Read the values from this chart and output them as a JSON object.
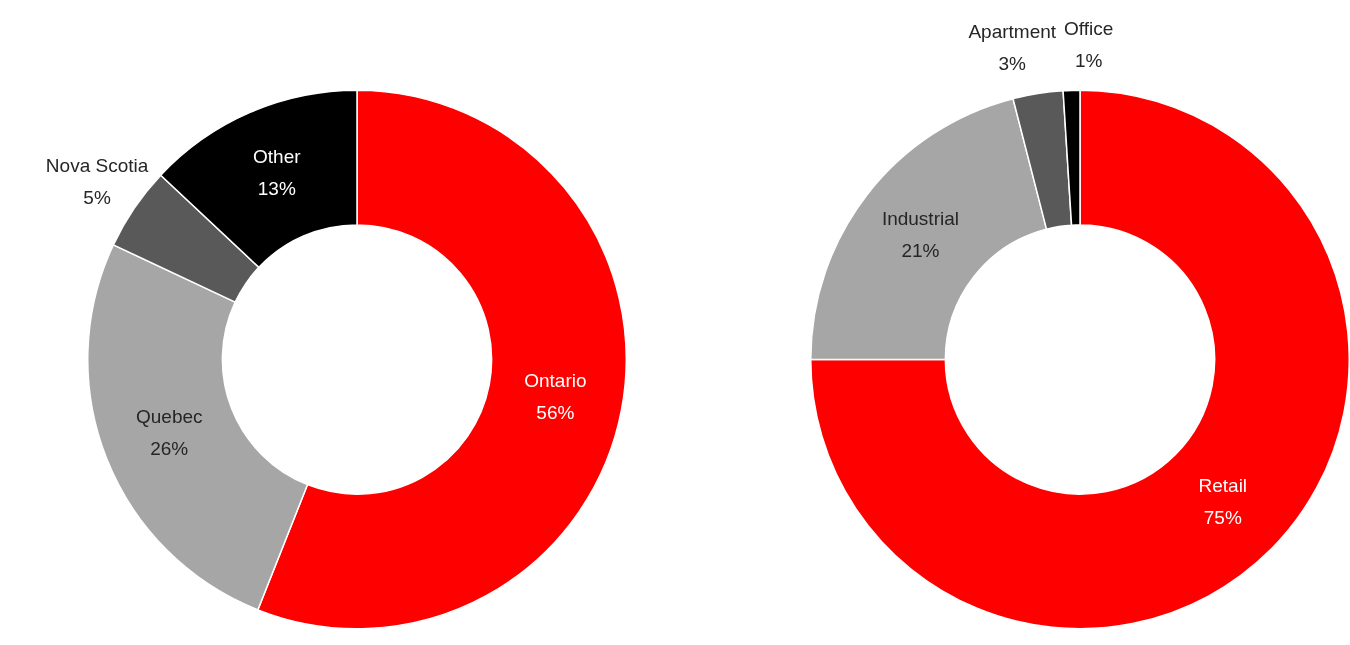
{
  "chart_data": [
    {
      "type": "donut",
      "categories": [
        "Ontario",
        "Quebec",
        "Nova Scotia",
        "Other"
      ],
      "values": [
        56,
        26,
        5,
        13
      ],
      "colors": [
        "#ff0000",
        "#a6a6a6",
        "#595959",
        "#000000"
      ],
      "value_labels": [
        "56%",
        "26%",
        "5%",
        "13%"
      ],
      "legend": false
    },
    {
      "type": "donut",
      "categories": [
        "Retail",
        "Industrial",
        "Apartment",
        "Office"
      ],
      "values": [
        75,
        21,
        3,
        1
      ],
      "colors": [
        "#ff0000",
        "#a6a6a6",
        "#595959",
        "#000000"
      ],
      "value_labels": [
        "75%",
        "21%",
        "3%",
        "1%"
      ],
      "legend": false
    }
  ]
}
